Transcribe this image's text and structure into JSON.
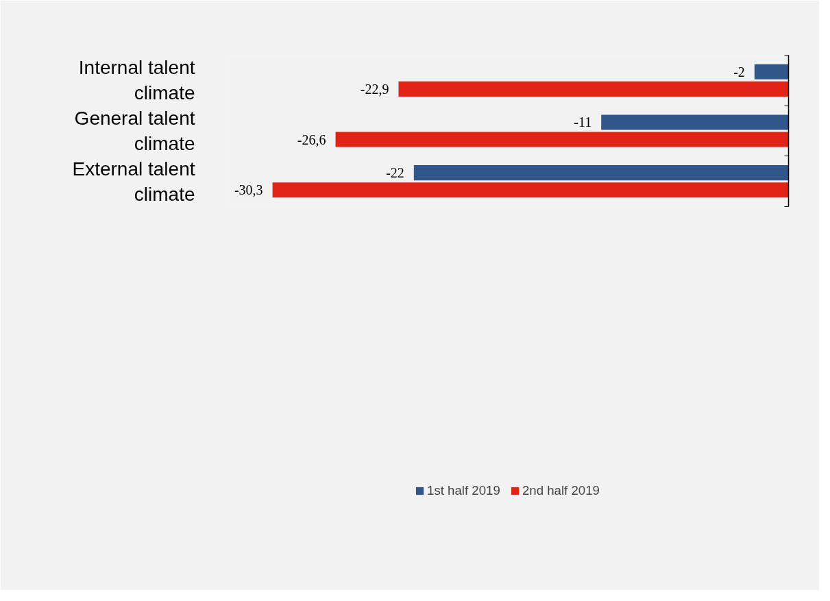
{
  "chart_data": {
    "type": "bar",
    "orientation": "horizontal",
    "categories": [
      "Internal talent climate",
      "General talent climate",
      "External talent climate"
    ],
    "series": [
      {
        "name": "1st half 2019",
        "color": "#31578a",
        "values": [
          -2,
          -11,
          -22
        ],
        "value_labels": [
          "-2",
          "-11",
          "-22"
        ]
      },
      {
        "name": "2nd half 2019",
        "color": "#e32316",
        "values": [
          -22.9,
          -26.6,
          -30.3
        ],
        "value_labels": [
          "-22,9",
          "-26,6",
          "-30,3"
        ]
      }
    ],
    "xlim": [
      -33,
      0
    ],
    "legend": "bottom",
    "grid": false
  }
}
